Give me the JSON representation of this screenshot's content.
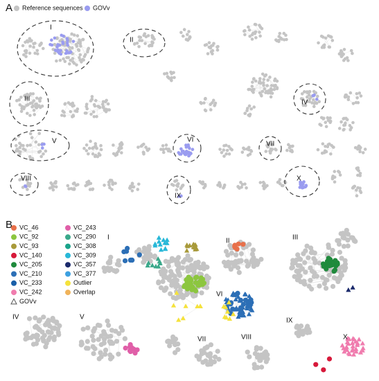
{
  "panel_a": {
    "label": "A",
    "legend": [
      "Reference sequences",
      "GOVv"
    ],
    "cluster_labels": [
      "I",
      "II",
      "III",
      "IV",
      "V",
      "VI",
      "VII",
      "VIII",
      "IX",
      "X"
    ]
  },
  "panel_b": {
    "label": "B",
    "legend": [
      {
        "name": "VC_46",
        "color": "#e8704a"
      },
      {
        "name": "VC_92",
        "color": "#8cc63f"
      },
      {
        "name": "VC_93",
        "color": "#a89a3a"
      },
      {
        "name": "VC_140",
        "color": "#d7193a"
      },
      {
        "name": "VC_205",
        "color": "#1f8a3c"
      },
      {
        "name": "VC_210",
        "color": "#2c6fb6"
      },
      {
        "name": "VC_233",
        "color": "#1a5fa8"
      },
      {
        "name": "VC_242",
        "color": "#f07cae"
      },
      {
        "name": "GOVv",
        "color": "#555555"
      },
      {
        "name": "VC_243",
        "color": "#e05fa8"
      },
      {
        "name": "VC_290",
        "color": "#3aa88a"
      },
      {
        "name": "VC_308",
        "color": "#1aa38a"
      },
      {
        "name": "VC_309",
        "color": "#28b8d8"
      },
      {
        "name": "VC_357",
        "color": "#1b2a6b"
      },
      {
        "name": "VC_377",
        "color": "#3da0e0"
      },
      {
        "name": "Outlier",
        "color": "#f5e23c"
      },
      {
        "name": "Overlap",
        "color": "#f0b35a"
      }
    ],
    "cluster_labels": [
      "I",
      "II",
      "III",
      "IV",
      "V",
      "VI",
      "VII",
      "VIII",
      "IX",
      "X"
    ]
  }
}
